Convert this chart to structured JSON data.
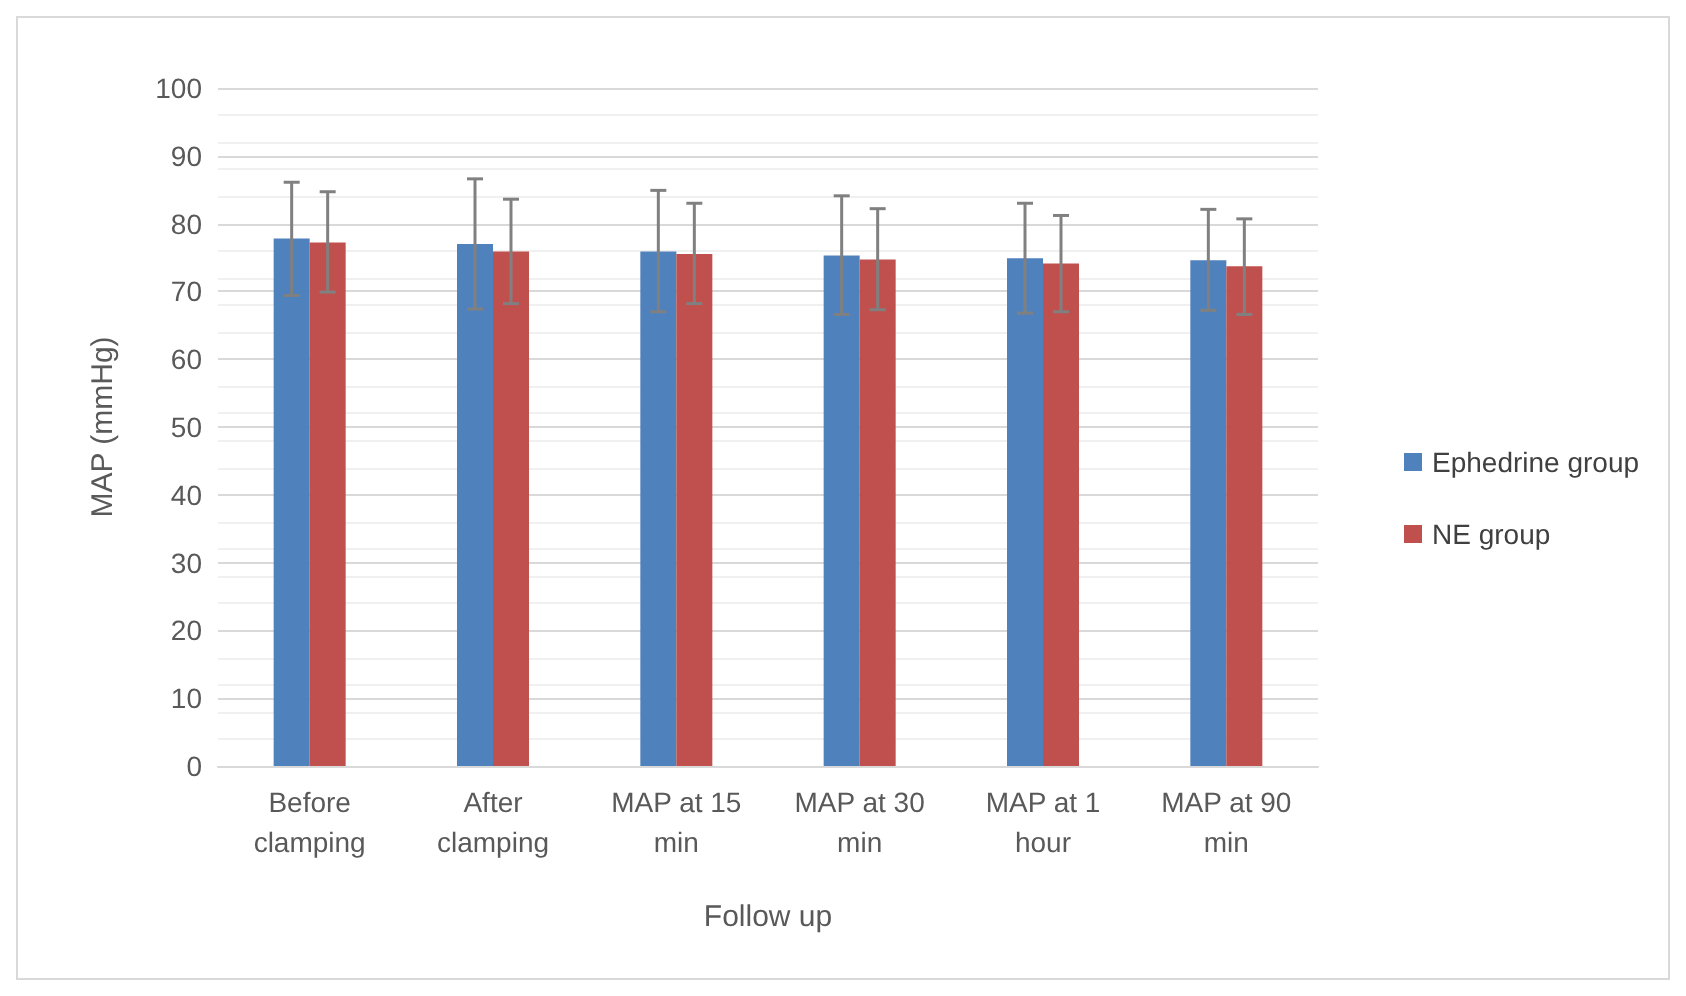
{
  "chart_data": {
    "type": "bar",
    "xlabel": "Follow up",
    "ylabel": "MAP (mmHg)",
    "categories": [
      "Before clamping",
      "After clamping",
      "MAP at 15 min",
      "MAP at 30 min",
      "MAP at 1 hour",
      "MAP at 90 min"
    ],
    "series": [
      {
        "name": "Ephedrine group",
        "color": "#4f81bd",
        "values": [
          77.8,
          77,
          75.9,
          75.3,
          74.9,
          74.6
        ],
        "errors": [
          [
            69.4,
            86.1
          ],
          [
            67.4,
            86.6
          ],
          [
            67,
            84.9
          ],
          [
            66.6,
            84.1
          ],
          [
            66.8,
            83
          ],
          [
            67.2,
            82.1
          ]
        ]
      },
      {
        "name": "NE group",
        "color": "#c0504d",
        "values": [
          77.2,
          75.9,
          75.5,
          74.7,
          74.1,
          73.7
        ],
        "errors": [
          [
            69.9,
            84.7
          ],
          [
            68.2,
            83.6
          ],
          [
            68.2,
            83
          ],
          [
            67.3,
            82.2
          ],
          [
            67,
            81.2
          ],
          [
            66.6,
            80.7
          ]
        ]
      }
    ],
    "ylim": [
      0,
      100
    ],
    "yticks": [
      0,
      10,
      20,
      30,
      40,
      50,
      60,
      70,
      80,
      90,
      100
    ],
    "grid": "y",
    "legend": "right"
  }
}
